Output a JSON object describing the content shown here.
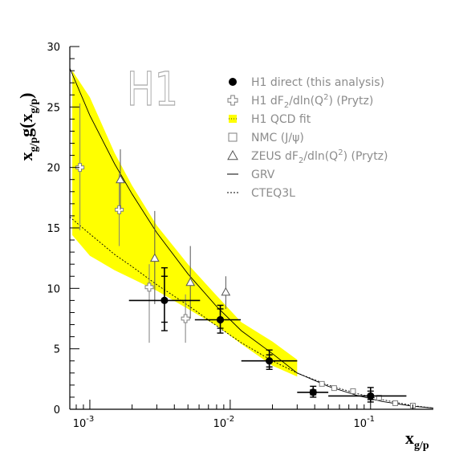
{
  "chart_data": {
    "type": "scatter",
    "title": "",
    "watermark": "H1",
    "xlabel": {
      "main": "x",
      "sub": "g/p"
    },
    "ylabel": {
      "main": "x",
      "sub": "g/p",
      "mid": "g(x",
      "sub2": "g/p",
      "end": ")"
    },
    "x_scale": "log",
    "xlim": [
      0.00072,
      0.28
    ],
    "ylim": [
      0,
      30
    ],
    "yticks": [
      0,
      5,
      10,
      15,
      20,
      25,
      30
    ],
    "ytick_labels": [
      "0",
      "5",
      "10",
      "15",
      "20",
      "25",
      "30"
    ],
    "xticks": [
      0.001,
      0.01,
      0.1
    ],
    "xtick_labels": [
      {
        "base": "10",
        "exp": "-3"
      },
      {
        "base": "10",
        "exp": "-2"
      },
      {
        "base": "10",
        "exp": "-1"
      }
    ],
    "grid": false,
    "legend_position": "top-right",
    "colors": {
      "band": "#ffff00",
      "open_markers": "#7f7f7f",
      "filled_markers": "#000000",
      "curves": "#000000"
    },
    "series": [
      {
        "name": "H1 direct (this analysis)",
        "marker": "filled-circle",
        "points": [
          {
            "x": 0.0034,
            "y": 9.0,
            "xlo": 0.0019,
            "xhi": 0.0061,
            "ylo": 6.5,
            "yhi": 11.7,
            "ylo2": 7.2,
            "yhi2": 11.0
          },
          {
            "x": 0.0085,
            "y": 7.4,
            "xlo": 0.0056,
            "xhi": 0.0119,
            "ylo": 6.3,
            "yhi": 8.6,
            "ylo2": 6.7,
            "yhi2": 8.3
          },
          {
            "x": 0.019,
            "y": 4.0,
            "xlo": 0.012,
            "xhi": 0.03,
            "ylo": 3.3,
            "yhi": 4.9,
            "ylo2": 3.5,
            "yhi2": 4.5
          },
          {
            "x": 0.039,
            "y": 1.4,
            "xlo": 0.03,
            "xhi": 0.05,
            "ylo": 1.0,
            "yhi": 1.9,
            "ylo2": 1.2,
            "yhi2": 1.6
          },
          {
            "x": 0.1,
            "y": 1.1,
            "xlo": 0.05,
            "xhi": 0.18,
            "ylo": 0.6,
            "yhi": 1.8,
            "ylo2": 0.8,
            "yhi2": 1.5
          }
        ]
      },
      {
        "name": "H1 dF2/dln(Q2) (Prytz)",
        "marker": "open-cross",
        "points": [
          {
            "x": 0.00085,
            "y": 20.0,
            "ylo": 14.8,
            "yhi": 25.3
          },
          {
            "x": 0.00162,
            "y": 16.5,
            "ylo": 13.5,
            "yhi": 19.5
          },
          {
            "x": 0.00265,
            "y": 10.1,
            "ylo": 5.5,
            "yhi": 12.0
          },
          {
            "x": 0.0048,
            "y": 7.5,
            "ylo": 5.5,
            "yhi": 9.5
          }
        ]
      },
      {
        "name": "H1 QCD fit",
        "marker": "band",
        "band": {
          "x": [
            0.00075,
            0.001,
            0.0015,
            0.002,
            0.003,
            0.005,
            0.008,
            0.012,
            0.02,
            0.03
          ],
          "upper": [
            28.0,
            25.8,
            21.2,
            18.5,
            15.2,
            12.0,
            9.4,
            7.2,
            5.6,
            4.1
          ],
          "lower": [
            14.4,
            12.7,
            11.5,
            10.8,
            9.8,
            8.3,
            6.9,
            5.4,
            3.6,
            2.7
          ]
        }
      },
      {
        "name": "NMC (J/ψ)",
        "marker": "open-square",
        "points": [
          {
            "x": 0.045,
            "y": 2.1
          },
          {
            "x": 0.055,
            "y": 1.75
          },
          {
            "x": 0.075,
            "y": 1.5
          },
          {
            "x": 0.115,
            "y": 0.95
          },
          {
            "x": 0.15,
            "y": 0.5
          },
          {
            "x": 0.2,
            "y": 0.3
          }
        ]
      },
      {
        "name": "ZEUS dF2/dln(Q2) (Prytz)",
        "marker": "open-triangle",
        "points": [
          {
            "x": 0.00165,
            "y": 19.0,
            "ylo": 16.5,
            "yhi": 21.5
          },
          {
            "x": 0.0029,
            "y": 12.5,
            "ylo": 8.7,
            "yhi": 16.4
          },
          {
            "x": 0.0052,
            "y": 10.5,
            "ylo": 7.5,
            "yhi": 13.5
          },
          {
            "x": 0.0093,
            "y": 9.7,
            "ylo": 8.3,
            "yhi": 11.0
          }
        ]
      },
      {
        "name": "GRV",
        "marker": "solid-line",
        "curve": {
          "x": [
            0.00072,
            0.001,
            0.0015,
            0.002,
            0.003,
            0.005,
            0.008,
            0.012,
            0.02,
            0.03,
            0.05,
            0.08,
            0.12,
            0.2,
            0.28
          ],
          "y": [
            28.2,
            24.3,
            20.3,
            17.8,
            14.6,
            11.2,
            8.5,
            6.5,
            4.6,
            3.0,
            1.9,
            1.15,
            0.65,
            0.25,
            0.1
          ]
        }
      },
      {
        "name": "CTEQ3L",
        "marker": "dotted-line",
        "curve": {
          "x": [
            0.00072,
            0.001,
            0.0015,
            0.002,
            0.003,
            0.005,
            0.008,
            0.012,
            0.02,
            0.03,
            0.05,
            0.08,
            0.12,
            0.2,
            0.28
          ],
          "y": [
            15.9,
            14.5,
            12.8,
            11.8,
            10.3,
            8.6,
            6.9,
            5.5,
            4.0,
            3.0,
            2.0,
            1.3,
            0.8,
            0.3,
            0.1
          ]
        }
      }
    ],
    "legend": [
      {
        "label": "H1 direct (this analysis)",
        "marker": "filled-circle"
      },
      {
        "label": "H1 dF",
        "sub": "2",
        "mid": "/dln(Q",
        "sup": "2",
        "end": ") (Prytz)",
        "marker": "open-cross"
      },
      {
        "label": "H1 QCD fit",
        "marker": "band"
      },
      {
        "label": "NMC (J/ψ)",
        "marker": "open-square"
      },
      {
        "label": "ZEUS dF",
        "sub": "2",
        "mid": "/dln(Q",
        "sup": "2",
        "end": ") (Prytz)",
        "marker": "open-triangle"
      },
      {
        "label": "GRV",
        "marker": "solid-line"
      },
      {
        "label": "CTEQ3L",
        "marker": "dotted-line"
      }
    ]
  }
}
